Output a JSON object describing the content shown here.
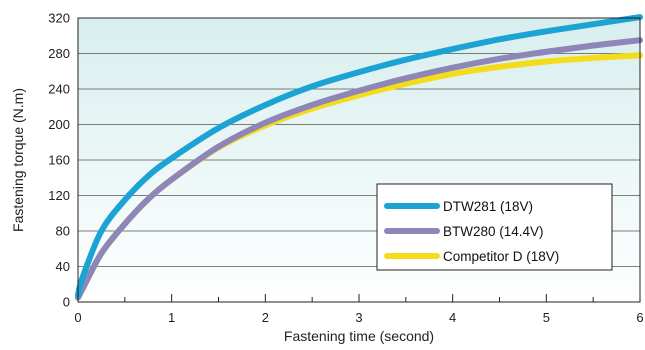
{
  "chart_data": {
    "type": "line",
    "title": "",
    "xlabel": "Fastening time (second)",
    "ylabel": "Fastening torque (N.m)",
    "xlim": [
      0,
      6
    ],
    "ylim": [
      0,
      320
    ],
    "xticks": [
      0,
      1,
      2,
      3,
      4,
      5,
      6
    ],
    "yticks": [
      0,
      40,
      80,
      120,
      160,
      200,
      240,
      280,
      320
    ],
    "grid": "horizontal",
    "legend": "bottom-right",
    "background_gradient": [
      "#d8eeee",
      "#ffffff"
    ],
    "series": [
      {
        "name": "DTW281 (18V)",
        "color": "#1ba3d4",
        "x": [
          0,
          0.05,
          0.25,
          0.5,
          0.75,
          1,
          1.5,
          2,
          2.5,
          3,
          3.5,
          4,
          4.5,
          5,
          5.5,
          6
        ],
        "y": [
          8,
          28,
          80,
          115,
          142,
          162,
          196,
          222,
          243,
          259,
          273,
          285,
          296,
          305,
          313,
          321
        ]
      },
      {
        "name": "BTW280 (14.4V)",
        "color": "#8e86b8",
        "x": [
          0,
          0.05,
          0.25,
          0.5,
          0.75,
          1,
          1.5,
          2,
          2.5,
          3,
          3.5,
          4,
          4.5,
          5,
          5.5,
          6
        ],
        "y": [
          5,
          15,
          55,
          88,
          116,
          138,
          175,
          202,
          222,
          238,
          252,
          264,
          274,
          282,
          289,
          295
        ]
      },
      {
        "name": "Competitor D (18V)",
        "color": "#f5dc1a",
        "x": [
          0,
          0.05,
          0.25,
          0.5,
          0.75,
          1,
          1.5,
          2,
          2.5,
          3,
          3.5,
          4,
          4.5,
          5,
          5.5,
          6
        ],
        "y": [
          5,
          15,
          55,
          88,
          116,
          138,
          174,
          199,
          218,
          233,
          246,
          257,
          265,
          271,
          275,
          278
        ]
      }
    ]
  }
}
